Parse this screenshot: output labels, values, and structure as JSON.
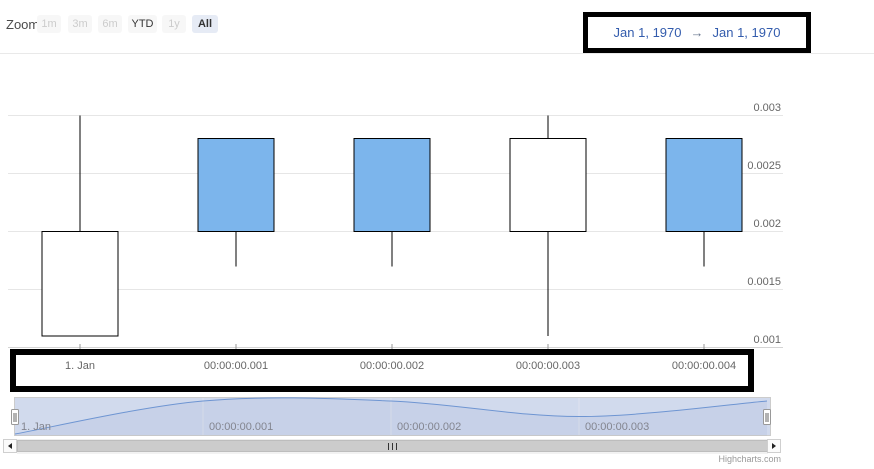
{
  "range_selector": {
    "zoom_label": "Zoom",
    "buttons": [
      {
        "label": "1m",
        "state": "disabled"
      },
      {
        "label": "3m",
        "state": "disabled"
      },
      {
        "label": "6m",
        "state": "disabled"
      },
      {
        "label": "YTD",
        "state": "enabled"
      },
      {
        "label": "1y",
        "state": "disabled"
      },
      {
        "label": "All",
        "state": "selected"
      }
    ],
    "date_from": "Jan 1, 1970",
    "arrow": "→",
    "date_to": "Jan 1, 1970"
  },
  "chart_data": {
    "type": "candlestick",
    "title": "",
    "xlabel": "",
    "ylabel": "",
    "x_tick_labels": [
      "1. Jan",
      "00:00:00.001",
      "00:00:00.002",
      "00:00:00.003",
      "00:00:00.004"
    ],
    "y_ticks": [
      0.001,
      0.0015,
      0.002,
      0.0025,
      0.003
    ],
    "y_tick_labels": [
      "0.001",
      "0.0015",
      "0.002",
      "0.0025",
      "0.003"
    ],
    "ylim": [
      0.001,
      0.003
    ],
    "grid": true,
    "legend_position": "none",
    "up_color": "#7cb5ec",
    "down_color": "#ffffff",
    "candle_line_color": "#000000",
    "points": [
      {
        "time": "00:00:00.000",
        "open": 0.002,
        "high": 0.003,
        "low": 0.0011,
        "close": 0.0011,
        "direction": "down"
      },
      {
        "time": "00:00:00.001",
        "open": 0.002,
        "high": 0.0028,
        "low": 0.0017,
        "close": 0.0028,
        "direction": "up"
      },
      {
        "time": "00:00:00.002",
        "open": 0.002,
        "high": 0.0028,
        "low": 0.0017,
        "close": 0.0028,
        "direction": "up"
      },
      {
        "time": "00:00:00.003",
        "open": 0.0028,
        "high": 0.003,
        "low": 0.0011,
        "close": 0.002,
        "direction": "down"
      },
      {
        "time": "00:00:00.004",
        "open": 0.002,
        "high": 0.0028,
        "low": 0.0017,
        "close": 0.0028,
        "direction": "up"
      }
    ],
    "navigator": {
      "labels": [
        "1. Jan",
        "00:00:00.001",
        "00:00:00.002",
        "00:00:00.003"
      ],
      "series_close": [
        0.0011,
        0.0028,
        0.0028,
        0.002,
        0.0028
      ]
    }
  },
  "colors": {
    "accent_blue": "#7cb5ec",
    "input_text": "#335cad",
    "button_bg": "#f7f7f7",
    "selected_button_bg": "#e6ebf5",
    "disabled_text": "#cccccc",
    "label_gray": "#666666",
    "grid_line": "#e6e6e6",
    "navigator_mask": "rgba(102,133,194,0.3)",
    "navigator_line": "#6e95d2",
    "scrollbar_thumb": "#cccccc",
    "annotation_box": "#000000"
  },
  "annotations": {
    "highlight_boxes": [
      "date-range-inputs",
      "x-axis-labels"
    ]
  },
  "credit": {
    "label": "Highcharts.com"
  }
}
